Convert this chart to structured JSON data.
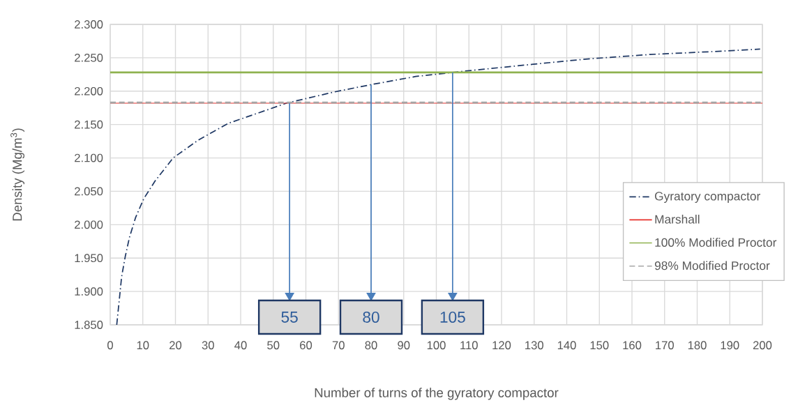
{
  "chart_data": {
    "type": "line",
    "xlabel": "Number of turns of the gyratory compactor",
    "ylabel": "Density (Mg/m$^{3}$)",
    "series": [
      {
        "name": "Gyratory compactor",
        "color": "#1f3864",
        "line_style": "dashed",
        "x": [
          2,
          3.5,
          4.6,
          5.9,
          7.8,
          10.3,
          13.7,
          19.3,
          27.1,
          36.3,
          47.6,
          54,
          68.9,
          80.2,
          93.7,
          105,
          108.7,
          127,
          145.8,
          165.7,
          183.6,
          199.3
        ],
        "values": [
          1.85,
          1.922,
          1.952,
          1.981,
          2.011,
          2.039,
          2.065,
          2.1,
          2.127,
          2.152,
          2.171,
          2.182,
          2.199,
          2.21,
          2.222,
          2.228,
          2.23,
          2.239,
          2.248,
          2.255,
          2.259,
          2.263
        ]
      }
    ],
    "ref_lines": [
      {
        "axis": "y",
        "value": 2.182,
        "label": "Marshall",
        "color": "#e8302a",
        "line_style": "solid"
      },
      {
        "axis": "y",
        "value": 2.228,
        "label": "100% Modified Proctor",
        "color": "#8fb24f",
        "line_style": "solid"
      },
      {
        "axis": "y",
        "value": 2.183,
        "label": "98% Modified Proctor",
        "color": "#a6a6a6",
        "line_style": "dashed"
      }
    ],
    "annotations": [
      {
        "text": "55",
        "x": 55,
        "y": 2.182
      },
      {
        "text": "80",
        "x": 80,
        "y": 2.21
      },
      {
        "text": "105",
        "x": 105,
        "y": 2.228
      }
    ],
    "xlim": [
      0,
      200
    ],
    "ylim": [
      1.85,
      2.3
    ],
    "xticks": [
      0,
      10,
      20,
      30,
      40,
      50,
      60,
      70,
      80,
      90,
      100,
      110,
      120,
      130,
      140,
      150,
      160,
      170,
      180,
      190,
      200
    ],
    "yticks": [
      {
        "value": 1.85,
        "label": "1.850"
      },
      {
        "value": 1.9,
        "label": "1.900"
      },
      {
        "value": 1.95,
        "label": "1.950"
      },
      {
        "value": 2.0,
        "label": "2.000"
      },
      {
        "value": 2.05,
        "label": "2.050"
      },
      {
        "value": 2.1,
        "label": "2.100"
      },
      {
        "value": 2.15,
        "label": "2.150"
      },
      {
        "value": 2.2,
        "label": "2.200"
      },
      {
        "value": 2.25,
        "label": "2.250"
      },
      {
        "value": 2.3,
        "label": "2.300"
      }
    ],
    "grid": true,
    "legend": "right"
  }
}
